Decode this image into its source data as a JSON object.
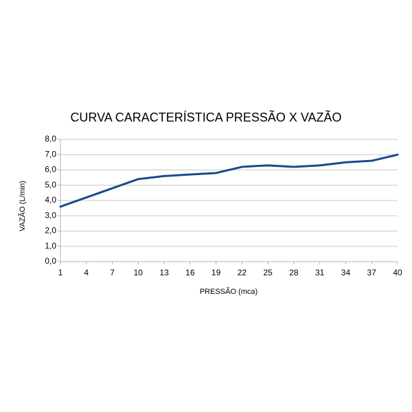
{
  "chart_data": {
    "type": "line",
    "title": "CURVA CARACTERÍSTICA PRESSÃO X VAZÃO",
    "x_label": "PRESSÃO (mca)",
    "y_label": "VAZÃO (L/min)",
    "x": [
      1,
      4,
      7,
      10,
      13,
      16,
      19,
      22,
      25,
      28,
      31,
      34,
      37,
      40
    ],
    "series": [
      {
        "color": "#1a4a8a",
        "values": [
          3.6,
          4.2,
          4.8,
          5.4,
          5.6,
          5.7,
          5.8,
          6.2,
          6.3,
          6.2,
          6.3,
          6.5,
          6.6,
          7.0
        ]
      }
    ],
    "xlim": [
      1,
      40
    ],
    "xticks": [
      1,
      4,
      7,
      10,
      13,
      16,
      19,
      22,
      25,
      28,
      31,
      34,
      37,
      40
    ],
    "ylim": [
      0,
      8
    ],
    "yticks": [
      {
        "value": 0,
        "label": "0,0"
      },
      {
        "value": 1,
        "label": "1,0"
      },
      {
        "value": 2,
        "label": "2,0"
      },
      {
        "value": 3,
        "label": "3,0"
      },
      {
        "value": 4,
        "label": "4,0"
      },
      {
        "value": 5,
        "label": "5,0"
      },
      {
        "value": 6,
        "label": "6,0"
      },
      {
        "value": 7,
        "label": "7,0"
      },
      {
        "value": 8,
        "label": "8,0"
      }
    ],
    "grid": true
  }
}
